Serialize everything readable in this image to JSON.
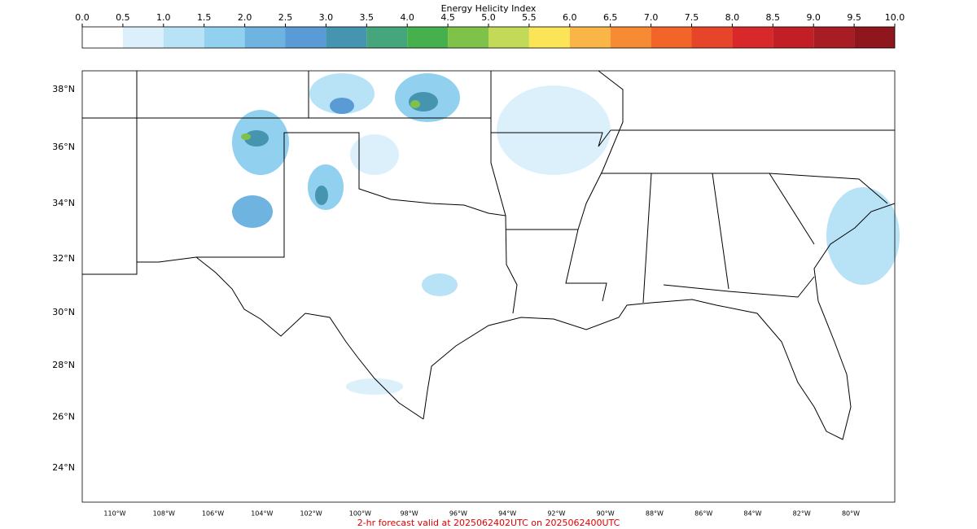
{
  "colorbar": {
    "title": "Energy Helicity Index",
    "ticks": [
      {
        "value": 0,
        "label": "0.0"
      },
      {
        "value": 0.5,
        "label": "0.5"
      },
      {
        "value": 1,
        "label": "1.0"
      },
      {
        "value": 1.5,
        "label": "1.5"
      },
      {
        "value": 2,
        "label": "2.0"
      },
      {
        "value": 2.5,
        "label": "2.5"
      },
      {
        "value": 3,
        "label": "3.0"
      },
      {
        "value": 3.5,
        "label": "3.5"
      },
      {
        "value": 4,
        "label": "4.0"
      },
      {
        "value": 4.5,
        "label": "4.5"
      },
      {
        "value": 5,
        "label": "5.0"
      },
      {
        "value": 5.5,
        "label": "5.5"
      },
      {
        "value": 6,
        "label": "6.0"
      },
      {
        "value": 6.5,
        "label": "6.5"
      },
      {
        "value": 7,
        "label": "7.0"
      },
      {
        "value": 7.5,
        "label": "7.5"
      },
      {
        "value": 8,
        "label": "8.0"
      },
      {
        "value": 8.5,
        "label": "8.5"
      },
      {
        "value": 9,
        "label": "9.0"
      },
      {
        "value": 9.5,
        "label": "9.5"
      },
      {
        "value": 10,
        "label": "10.0"
      }
    ],
    "colors": [
      "#ffffff",
      "#dcf0fb",
      "#b8e2f6",
      "#92d0f0",
      "#6fb3e0",
      "#5a9bd5",
      "#4594b0",
      "#45a57c",
      "#46b14c",
      "#7fc24a",
      "#c3d958",
      "#fbe456",
      "#f9b545",
      "#f68b33",
      "#f26428",
      "#e6452a",
      "#d9282a",
      "#c11e26",
      "#a81c24",
      "#8e161c"
    ]
  },
  "map": {
    "lat_labels": [
      {
        "value": 24,
        "label": "24°N"
      },
      {
        "value": 26,
        "label": "26°N"
      },
      {
        "value": 28,
        "label": "28°N"
      },
      {
        "value": 30,
        "label": "30°N"
      },
      {
        "value": 32,
        "label": "32°N"
      },
      {
        "value": 34,
        "label": "34°N"
      },
      {
        "value": 36,
        "label": "36°N"
      },
      {
        "value": 38,
        "label": "38°N"
      }
    ],
    "lon_labels": [
      {
        "value": -110,
        "label": "110°W"
      },
      {
        "value": -108,
        "label": "108°W"
      },
      {
        "value": -106,
        "label": "106°W"
      },
      {
        "value": -104,
        "label": "104°W"
      },
      {
        "value": -102,
        "label": "102°W"
      },
      {
        "value": -100,
        "label": "100°W"
      },
      {
        "value": -98,
        "label": "98°W"
      },
      {
        "value": -96,
        "label": "96°W"
      },
      {
        "value": -94,
        "label": "94°W"
      },
      {
        "value": -92,
        "label": "92°W"
      },
      {
        "value": -90,
        "label": "90°W"
      },
      {
        "value": -88,
        "label": "88°W"
      },
      {
        "value": -86,
        "label": "86°W"
      },
      {
        "value": -84,
        "label": "84°W"
      },
      {
        "value": -82,
        "label": "82°W"
      },
      {
        "value": -80,
        "label": "80°W"
      }
    ]
  },
  "footer": "2-hr forecast valid at 2025062402UTC on 2025062400UTC"
}
